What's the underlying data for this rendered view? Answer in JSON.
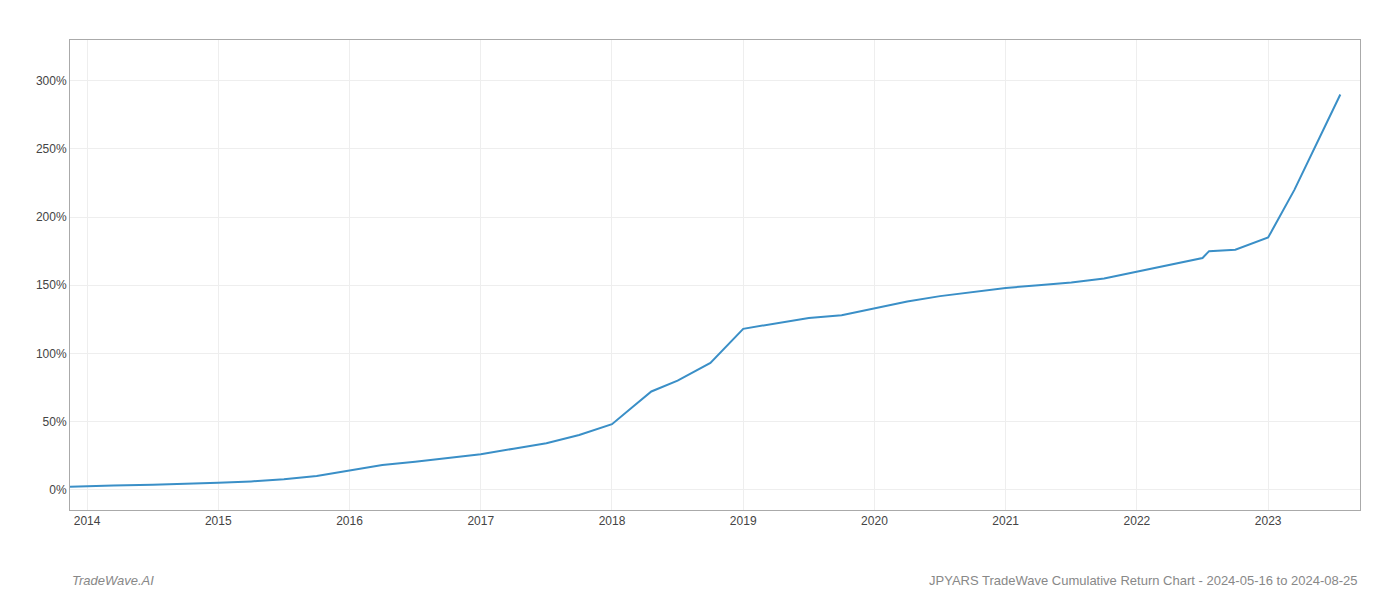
{
  "chart_data": {
    "type": "line",
    "x": [
      2013.87,
      2014.0,
      2014.2,
      2014.5,
      2014.75,
      2015.0,
      2015.25,
      2015.5,
      2015.75,
      2016.0,
      2016.25,
      2016.5,
      2016.75,
      2017.0,
      2017.25,
      2017.5,
      2017.75,
      2018.0,
      2018.15,
      2018.3,
      2018.5,
      2018.75,
      2019.0,
      2019.25,
      2019.5,
      2019.75,
      2020.0,
      2020.25,
      2020.5,
      2020.75,
      2021.0,
      2021.25,
      2021.5,
      2021.75,
      2022.0,
      2022.25,
      2022.5,
      2022.55,
      2022.75,
      2023.0,
      2023.2,
      2023.45,
      2023.55
    ],
    "values": [
      2.0,
      2.5,
      3.0,
      3.5,
      4.0,
      5.0,
      6.0,
      7.5,
      10.0,
      14.0,
      18.0,
      20.5,
      23.0,
      26.0,
      30.0,
      34.0,
      40.0,
      48.0,
      60.0,
      72.0,
      80.0,
      93.0,
      118.0,
      122.0,
      126.0,
      128.0,
      133.0,
      138.0,
      142.0,
      145.0,
      148.0,
      150.0,
      152.0,
      155.0,
      160.0,
      165.0,
      170.0,
      175.0,
      176.0,
      185.0,
      220.0,
      270.0,
      290.0
    ],
    "color": "#3a8fc7",
    "xlim": [
      2013.87,
      2023.7
    ],
    "ylim": [
      -15,
      330
    ],
    "xticks": [
      2014,
      2015,
      2016,
      2017,
      2018,
      2019,
      2020,
      2021,
      2022,
      2023
    ],
    "yticks": [
      {
        "value": 0,
        "label": "0%"
      },
      {
        "value": 50,
        "label": "50%"
      },
      {
        "value": 100,
        "label": "100%"
      },
      {
        "value": 150,
        "label": "150%"
      },
      {
        "value": 200,
        "label": "200%"
      },
      {
        "value": 250,
        "label": "250%"
      },
      {
        "value": 300,
        "label": "300%"
      }
    ],
    "grid": true,
    "annotations": [
      "TradeWave.AI",
      "JPYARS TradeWave Cumulative Return Chart - 2024-05-16 to 2024-08-25"
    ]
  }
}
